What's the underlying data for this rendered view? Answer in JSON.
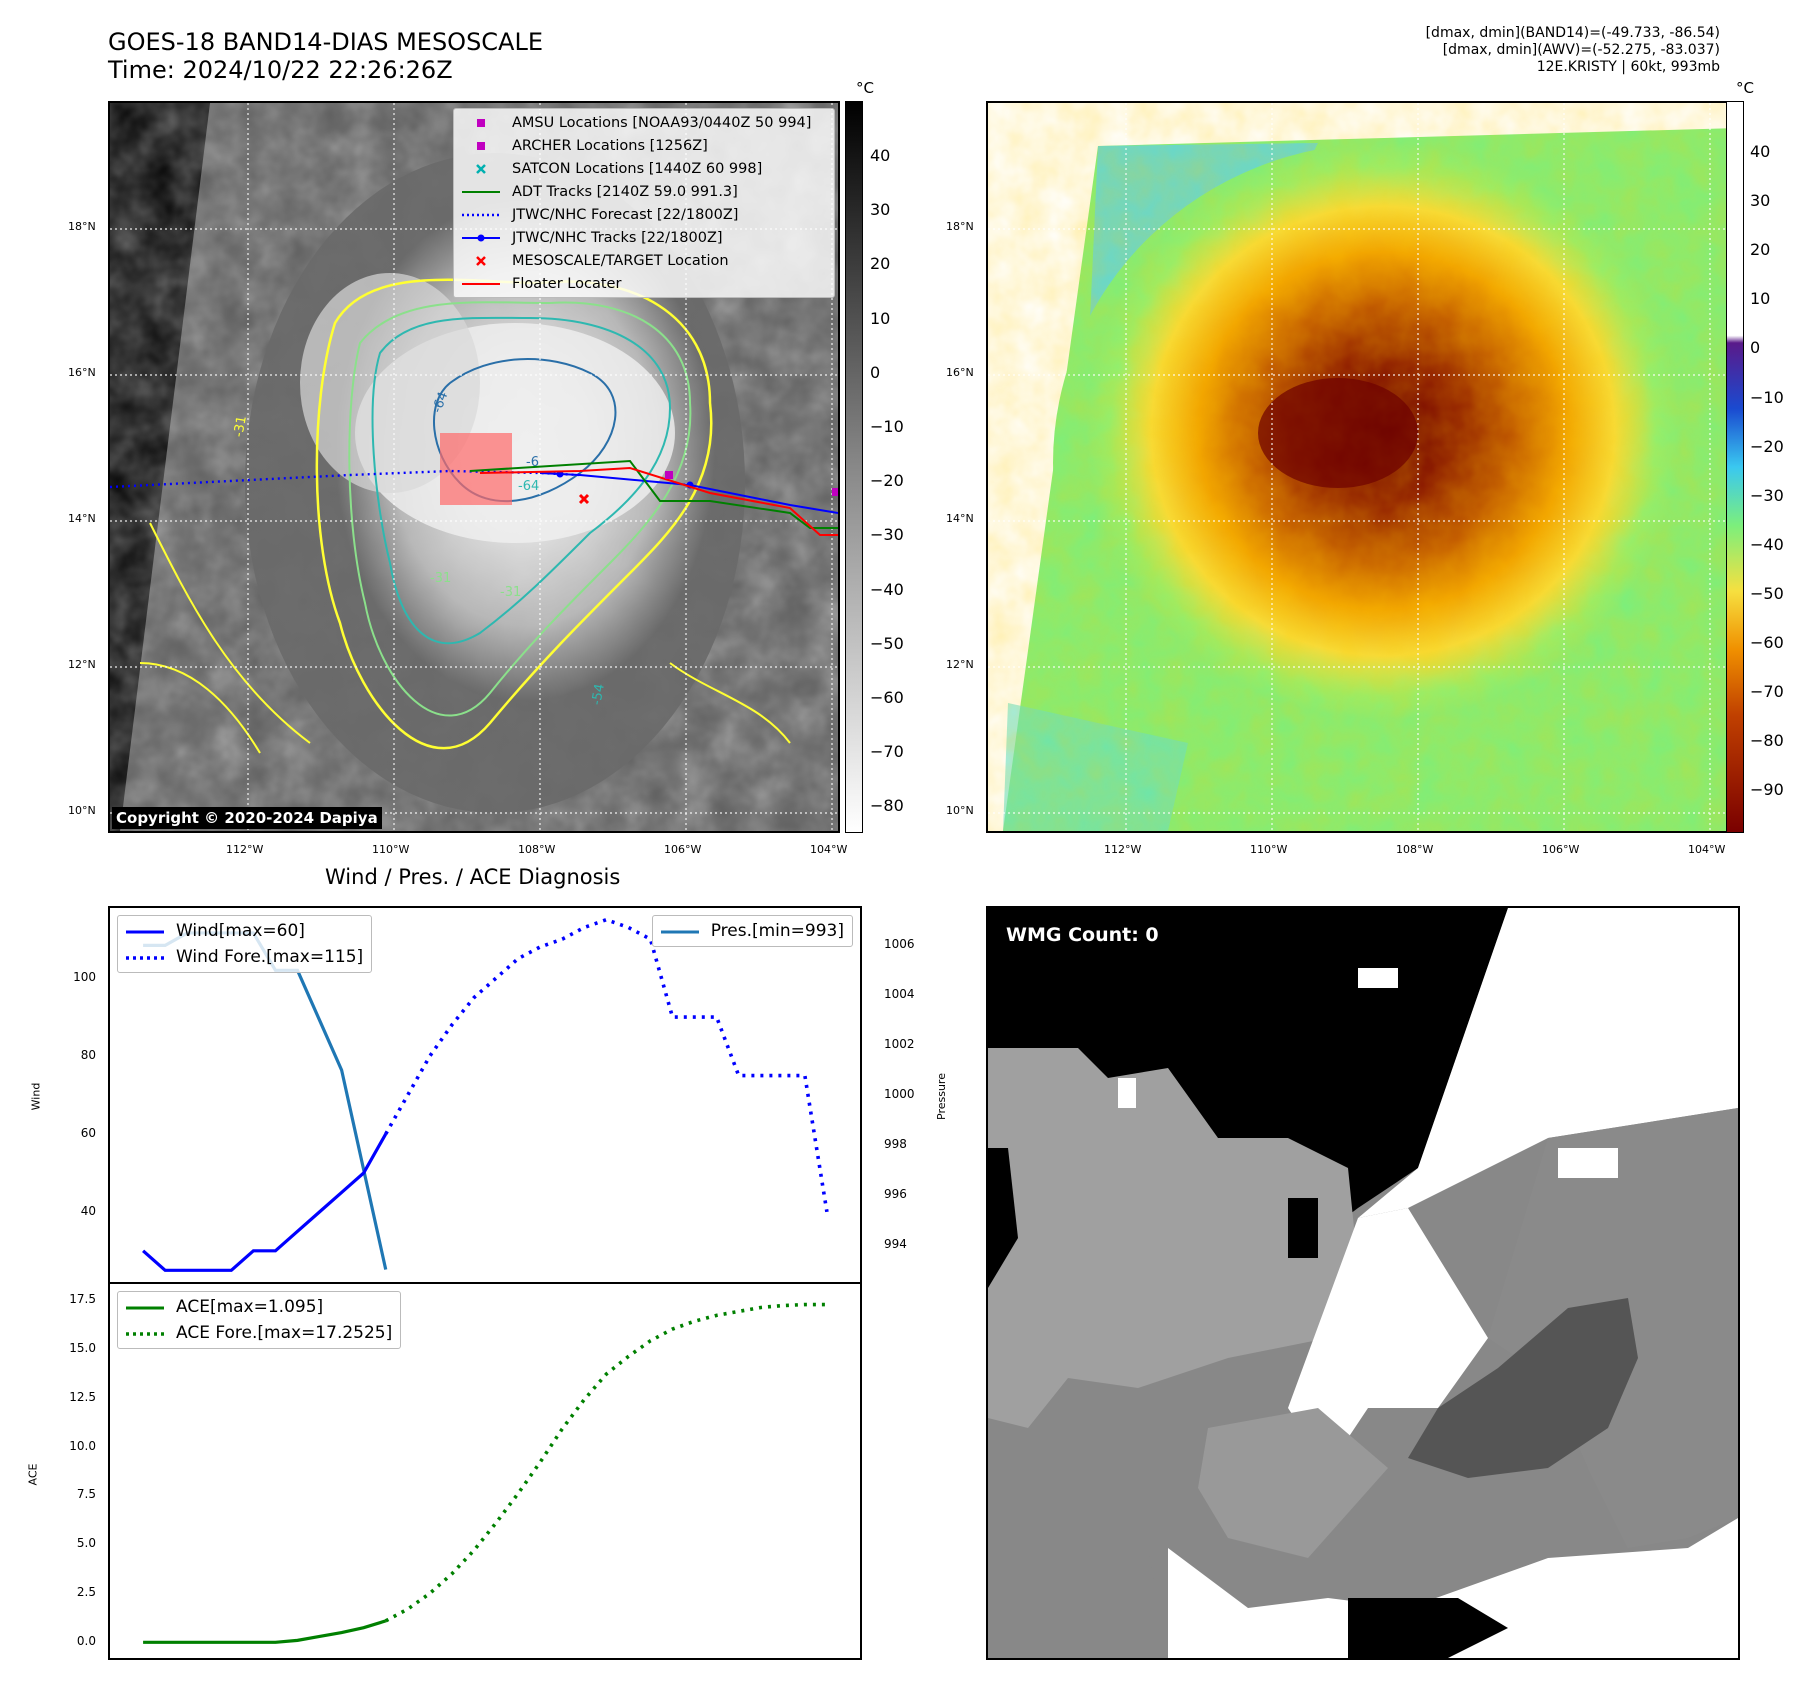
{
  "header": {
    "title_line1": "GOES-18 BAND14-DIAS MESOSCALE",
    "title_line2": "Time: 2024/10/22 22:26:26Z",
    "info_line1": "[dmax, dmin](BAND14)=(-49.733, -86.54)",
    "info_line2": "[dmax, dmin](AWV)=(-52.275, -83.037)",
    "info_line3": "12E.KRISTY | 60kt, 993mb"
  },
  "maps": {
    "lat_labels": [
      "18°N",
      "16°N",
      "14°N",
      "12°N",
      "10°N"
    ],
    "lon_labels": [
      "112°W",
      "110°W",
      "108°W",
      "106°W",
      "104°W"
    ],
    "colorbar_unit": "°C",
    "ir_colorbar_ticks": [
      "40",
      "30",
      "20",
      "10",
      "0",
      "−10",
      "−20",
      "−30",
      "−40",
      "−50",
      "−60",
      "−70",
      "−80"
    ],
    "wv_colorbar_ticks": [
      "40",
      "30",
      "20",
      "10",
      "0",
      "−10",
      "−20",
      "−30",
      "−40",
      "−50",
      "−60",
      "−70",
      "−80",
      "−90"
    ],
    "contour_labels": [
      "-64",
      "-64",
      "-31",
      "-31",
      "-54",
      "-6",
      "-31"
    ],
    "copyright": "Copyright © 2020-2024 Dapiya",
    "legend": [
      {
        "label": "AMSU Locations [NOAA93/0440Z 50 994]",
        "color": "#c000c0",
        "marker": "square"
      },
      {
        "label": "ARCHER Locations [1256Z]",
        "color": "#c000c0",
        "marker": "square"
      },
      {
        "label": "SATCON Locations [1440Z 60 998]",
        "color": "#00b0b0",
        "marker": "x"
      },
      {
        "label": "ADT Tracks [2140Z 59.0 991.3]",
        "color": "#008000",
        "marker": "line"
      },
      {
        "label": "JTWC/NHC Forecast [22/1800Z]",
        "color": "#0000ff",
        "marker": "dotted"
      },
      {
        "label": "JTWC/NHC Tracks [22/1800Z]",
        "color": "#0000ff",
        "marker": "line-dot"
      },
      {
        "label": "MESOSCALE/TARGET Location",
        "color": "#ff0000",
        "marker": "x"
      },
      {
        "label": "Floater Locater",
        "color": "#ff0000",
        "marker": "line"
      }
    ]
  },
  "diagnosis": {
    "title": "Wind / Pres. / ACE Diagnosis",
    "wind_axis_label": "Wind",
    "pressure_axis_label": "Pressure",
    "ace_axis_label": "ACE",
    "wind_ticks": [
      "100",
      "80",
      "60",
      "40"
    ],
    "pressure_ticks": [
      "1006",
      "1004",
      "1002",
      "1000",
      "998",
      "996",
      "994"
    ],
    "ace_ticks": [
      "17.5",
      "15.0",
      "12.5",
      "10.0",
      "7.5",
      "5.0",
      "2.5",
      "0.0"
    ],
    "legend_wind": "Wind[max=60]",
    "legend_wind_fore": "Wind Fore.[max=115]",
    "legend_pres": "Pres.[min=993]",
    "legend_ace": "ACE[max=1.095]",
    "legend_ace_fore": "ACE Fore.[max=17.2525]",
    "wind_color": "#0000ff",
    "pres_color": "#1f77b4",
    "ace_color": "#008000"
  },
  "wmg": {
    "label": "WMG Count: 0"
  },
  "chart_data": [
    {
      "type": "line",
      "title": "Wind / Pres. / ACE Diagnosis",
      "ylabel": "Wind",
      "ylim": [
        22,
        118
      ],
      "x": [
        0,
        1,
        2,
        3,
        4,
        5,
        6,
        7,
        8,
        9,
        10,
        11,
        12,
        13,
        14,
        15,
        16,
        17,
        18,
        19,
        20,
        21,
        22,
        23,
        24,
        25,
        26,
        27,
        28,
        29,
        30,
        31
      ],
      "series": [
        {
          "name": "Wind[max=60]",
          "x": [
            0,
            1,
            2,
            3,
            4,
            5,
            6,
            7,
            8,
            9,
            10,
            11
          ],
          "values": [
            30,
            25,
            25,
            25,
            25,
            30,
            30,
            35,
            40,
            45,
            50,
            60
          ]
        },
        {
          "name": "Wind Fore.[max=115]",
          "x": [
            11,
            12,
            13,
            14,
            15,
            16,
            17,
            18,
            19,
            20,
            21,
            22,
            23,
            24,
            25,
            26,
            27,
            28,
            29,
            30,
            31
          ],
          "values": [
            60,
            70,
            80,
            88,
            95,
            100,
            105,
            108,
            110,
            113,
            115,
            113,
            110,
            90,
            90,
            90,
            75,
            75,
            75,
            75,
            40
          ]
        }
      ]
    },
    {
      "type": "line",
      "ylabel": "Pressure",
      "ylim": [
        992.5,
        1007.5
      ],
      "series": [
        {
          "name": "Pres.[min=993]",
          "x": [
            0,
            1,
            2,
            3,
            4,
            5,
            6,
            7,
            8,
            9,
            10,
            11
          ],
          "values": [
            1006,
            1006,
            1006.5,
            1006.5,
            1006.5,
            1006.5,
            1005,
            1005,
            1003,
            1001,
            997,
            993
          ]
        }
      ]
    },
    {
      "type": "line",
      "ylabel": "ACE",
      "ylim": [
        -0.8,
        18.3
      ],
      "series": [
        {
          "name": "ACE[max=1.095]",
          "x": [
            0,
            1,
            2,
            3,
            4,
            5,
            6,
            7,
            8,
            9,
            10,
            11
          ],
          "values": [
            0,
            0,
            0,
            0,
            0,
            0,
            0,
            0.1,
            0.3,
            0.5,
            0.75,
            1.095
          ]
        },
        {
          "name": "ACE Fore.[max=17.2525]",
          "x": [
            11,
            12,
            13,
            14,
            15,
            16,
            17,
            18,
            19,
            20,
            21,
            22,
            23,
            24,
            25,
            26,
            27,
            28,
            29,
            30,
            31
          ],
          "values": [
            1.095,
            1.7,
            2.5,
            3.5,
            4.7,
            6.1,
            7.6,
            9.2,
            10.9,
            12.4,
            13.7,
            14.6,
            15.4,
            16.0,
            16.4,
            16.7,
            16.9,
            17.1,
            17.2,
            17.25,
            17.2525
          ]
        }
      ]
    }
  ]
}
